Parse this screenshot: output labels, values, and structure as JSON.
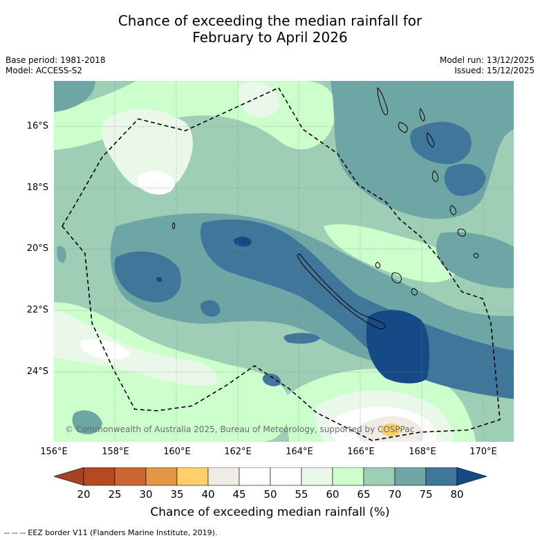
{
  "title": {
    "line1": "Chance of exceeding the median rainfall for",
    "line2": "February to April 2026"
  },
  "meta": {
    "base_period": "Base period: 1981-2018",
    "model": "Model: ACCESS-S2",
    "model_run": "Model run: 13/12/2025",
    "issued": "Issued: 15/12/2025"
  },
  "map": {
    "lat_labels": [
      "16°S",
      "18°S",
      "20°S",
      "22°S",
      "24°S"
    ],
    "lon_labels": [
      "156°E",
      "158°E",
      "160°E",
      "162°E",
      "164°E",
      "166°E",
      "168°E",
      "170°E"
    ],
    "copyright": "© Commonwealth of Australia 2025, Bureau of Meteorology, supported by COSPPac",
    "colors": {
      "p60_65": "#ccffcc",
      "p65_70": "#9ecfb6",
      "p70_75": "#6ea5a5",
      "p75_80": "#3f7699",
      "p80_plus": "#154a86",
      "p55_60": "#eaf8ea",
      "p50_55": "#ffffff",
      "p45_50": "#efebe5",
      "p35_40": "#ffd06a"
    }
  },
  "colorbar": {
    "ticks": [
      "20",
      "25",
      "30",
      "35",
      "40",
      "45",
      "50",
      "55",
      "60",
      "65",
      "70",
      "75",
      "80"
    ],
    "colors": [
      "#a34321",
      "#b34a22",
      "#cb6532",
      "#e39646",
      "#ffd06a",
      "#efebe5",
      "#ffffff",
      "#ffffff",
      "#eaf8ea",
      "#ccffcc",
      "#9ecfb6",
      "#6ea5a5",
      "#3f7699",
      "#154a86"
    ],
    "label": "Chance of exceeding median rainfall (%)"
  },
  "footnote": "--  --  -- EEZ border V11 (Flanders Marine Institute, 2019)."
}
